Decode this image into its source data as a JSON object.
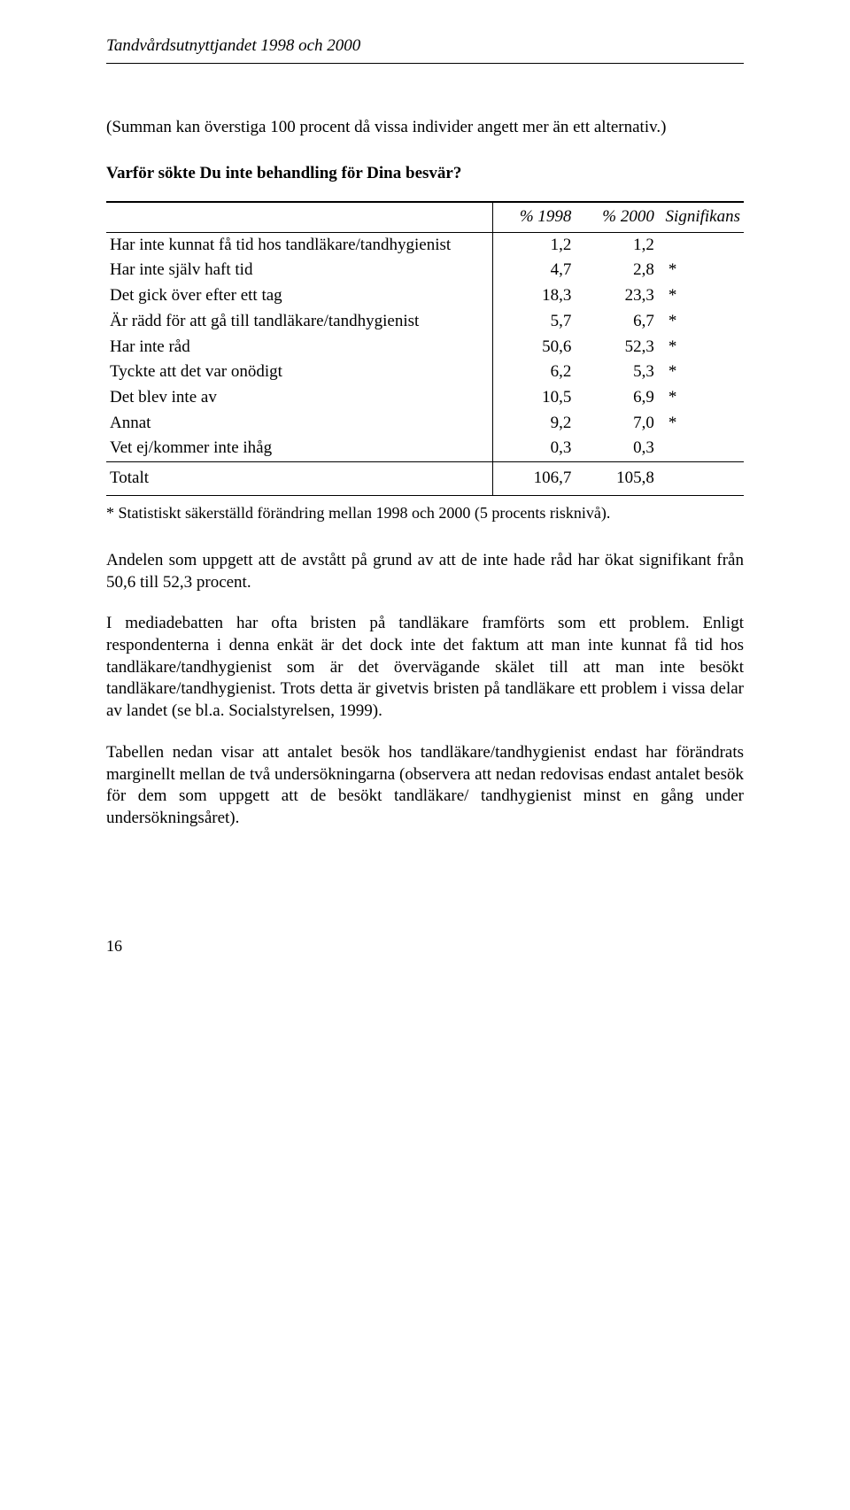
{
  "header": {
    "title": "Tandvårdsutnyttjandet 1998 och 2000"
  },
  "intro": "(Summan kan överstiga 100 procent då vissa individer angett mer än ett alternativ.)",
  "question": "Varför sökte Du inte behandling för Dina besvär?",
  "table": {
    "columns": {
      "c1": "% 1998",
      "c2": "% 2000",
      "c3": "Signifikans"
    },
    "rows": [
      {
        "label": "Har inte kunnat få tid hos tandläkare/tandhygienist",
        "v1": "1,2",
        "v2": "1,2",
        "sig": ""
      },
      {
        "label": "Har inte själv haft tid",
        "v1": "4,7",
        "v2": "2,8",
        "sig": "*"
      },
      {
        "label": "Det gick över efter ett tag",
        "v1": "18,3",
        "v2": "23,3",
        "sig": "*"
      },
      {
        "label": "Är rädd för att gå till tandläkare/tandhygienist",
        "v1": "5,7",
        "v2": "6,7",
        "sig": "*"
      },
      {
        "label": "Har inte råd",
        "v1": "50,6",
        "v2": "52,3",
        "sig": "*"
      },
      {
        "label": "Tyckte att det var onödigt",
        "v1": "6,2",
        "v2": "5,3",
        "sig": "*"
      },
      {
        "label": "Det blev inte av",
        "v1": "10,5",
        "v2": "6,9",
        "sig": "*"
      },
      {
        "label": "Annat",
        "v1": "9,2",
        "v2": "7,0",
        "sig": "*"
      },
      {
        "label": "Vet ej/kommer inte ihåg",
        "v1": "0,3",
        "v2": "0,3",
        "sig": ""
      }
    ],
    "total": {
      "label": "Totalt",
      "v1": "106,7",
      "v2": "105,8"
    }
  },
  "footnote": "* Statistiskt säkerställd förändring mellan 1998 och 2000 (5 procents risknivå).",
  "paragraphs": {
    "p1": "Andelen som uppgett att de avstått på grund av att de inte hade råd har ökat signifikant från 50,6 till 52,3 procent.",
    "p2": "I mediadebatten har ofta bristen på tandläkare framförts som ett problem. Enligt respondenterna i denna enkät är det dock inte det faktum att man inte kunnat få tid hos tandläkare/tandhygienist som är det övervägande skälet till att man inte besökt tandläkare/tandhygienist. Trots detta är givetvis bristen på tandläkare ett problem i vissa delar av landet (se bl.a. Socialstyrelsen, 1999).",
    "p3": "Tabellen nedan visar att antalet besök hos tandläkare/tandhygienist endast har förändrats marginellt mellan de två undersökningarna (observera att nedan redovisas endast antalet besök för dem som uppgett att de besökt tandläkare/ tandhygienist minst en gång under undersökningsåret)."
  },
  "pageNumber": "16"
}
